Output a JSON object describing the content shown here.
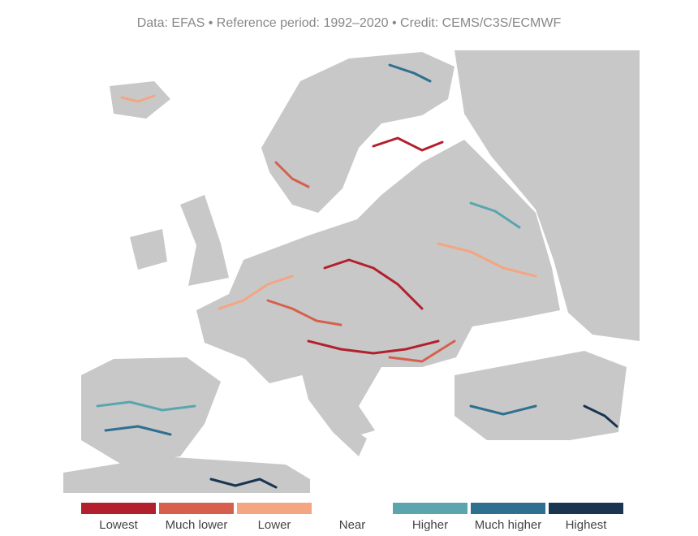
{
  "credit": "Data: EFAS • Reference period: 1992–2020 • Credit: CEMS/C3S/ECMWF",
  "legend": [
    {
      "label": "Lowest",
      "color": "#b2202e"
    },
    {
      "label": "Much lower",
      "color": "#d6604d"
    },
    {
      "label": "Lower",
      "color": "#f4a582"
    },
    {
      "label": "Near",
      "color": null
    },
    {
      "label": "Higher",
      "color": "#5aa5ae"
    },
    {
      "label": "Much higher",
      "color": "#2f6f8f"
    },
    {
      "label": "Highest",
      "color": "#1a3550"
    }
  ]
}
